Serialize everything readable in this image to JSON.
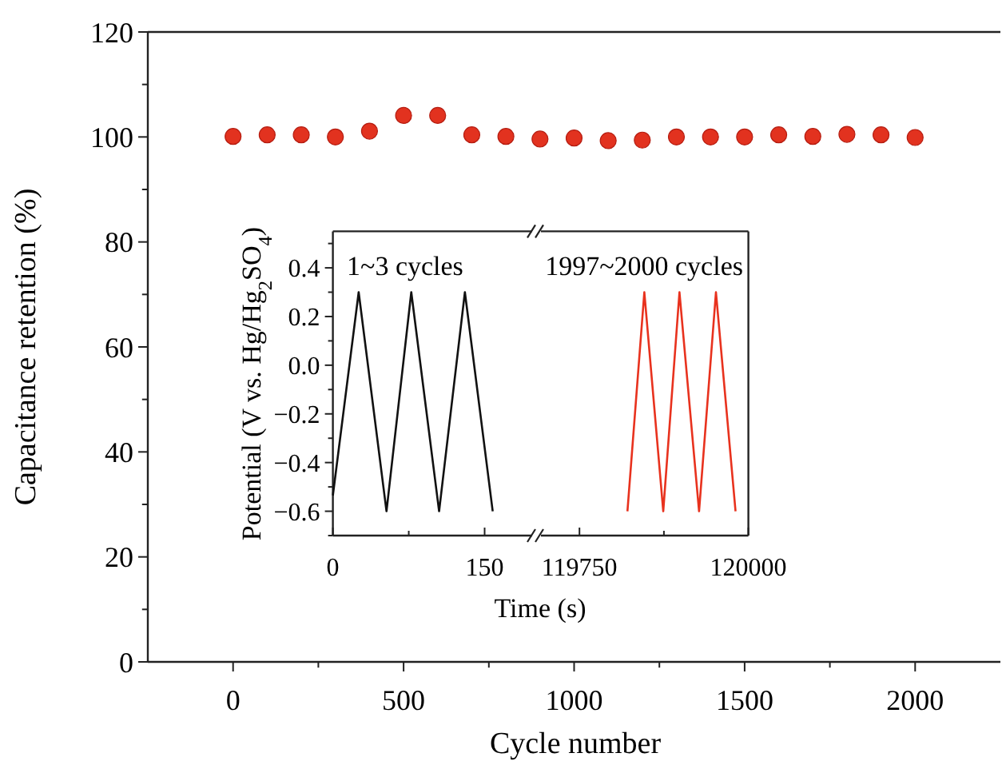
{
  "chart_data": [
    {
      "type": "scatter",
      "xlabel": "Cycle number",
      "ylabel": "Capacitance retention (%)",
      "xlim": [
        -250,
        2250
      ],
      "ylim": [
        0,
        120
      ],
      "xticks": [
        0,
        {
          "value": 250,
          "label": null
        },
        500,
        {
          "value": 750,
          "label": null
        },
        1000,
        {
          "value": 1250,
          "label": null
        },
        1500,
        {
          "value": 1750,
          "label": null
        },
        2000
      ],
      "yticks": [
        0,
        {
          "value": 10,
          "label": null
        },
        20,
        {
          "value": 30,
          "label": null
        },
        40,
        {
          "value": 50,
          "label": null
        },
        60,
        {
          "value": 70,
          "label": null
        },
        80,
        {
          "value": 90,
          "label": null
        },
        100,
        {
          "value": 110,
          "label": null
        },
        120
      ],
      "marker": "circle",
      "grid": false,
      "x": [
        0,
        100,
        200,
        300,
        400,
        500,
        600,
        700,
        800,
        900,
        1000,
        1100,
        1200,
        1300,
        1400,
        1500,
        1600,
        1700,
        1800,
        1900,
        2000
      ],
      "series": [
        {
          "color": "#e2321f",
          "values": [
            100.1,
            100.4,
            100.4,
            100,
            101.1,
            104.1,
            104.1,
            100.4,
            100.1,
            99.6,
            99.8,
            99.3,
            99.4,
            100,
            100,
            100,
            100.4,
            100.1,
            100.5,
            100.4,
            99.9
          ]
        }
      ]
    },
    {
      "type": "line",
      "xlabel": "Time (s)",
      "ylabel": "Potential (V vs. Hg/Hg$_{2}$SO$_{4}$)",
      "xlim": [
        0,
        197
      ],
      "ylim": [
        -0.7,
        0.55
      ],
      "xticks": [
        0,
        {
          "value": 75,
          "label": null
        },
        150
      ],
      "yticks": [
        {
          "value": -0.7,
          "label": null
        },
        {
          "value": -0.6,
          "label": "−0.6"
        },
        {
          "value": -0.5,
          "label": null
        },
        {
          "value": -0.4,
          "label": "−0.4"
        },
        {
          "value": -0.3,
          "label": null
        },
        {
          "value": -0.2,
          "label": "−0.2"
        },
        {
          "value": -0.1,
          "label": null
        },
        {
          "value": 0,
          "label": "0.0"
        },
        {
          "value": 0.1,
          "label": null
        },
        {
          "value": 0.2,
          "label": "0.2"
        },
        {
          "value": 0.3,
          "label": null
        },
        {
          "value": 0.4,
          "label": "0.4"
        },
        {
          "value": 0.5,
          "label": null
        }
      ],
      "annotations": [
        "1~3 cycles"
      ],
      "grid": false,
      "line_style": "solid",
      "series": [
        {
          "color": "#111111",
          "x": [
            0,
            25.5,
            53,
            77.5,
            105,
            130.5,
            158
          ],
          "values": [
            -0.535,
            0.3,
            -0.6,
            0.3,
            -0.6,
            0.3,
            -0.6
          ]
        }
      ]
    },
    {
      "type": "line",
      "xlim": [
        119693,
        120000
      ],
      "ylim": [
        -0.7,
        0.55
      ],
      "tick_labels": "x",
      "xticks": [
        119750,
        {
          "value": 119875,
          "label": null
        },
        120000
      ],
      "annotations": [
        "1997~2000 cycles"
      ],
      "grid": false,
      "line_style": "solid",
      "series": [
        {
          "color": "#e8321e",
          "x": [
            119821,
            119846,
            119874,
            119898,
            119927,
            119952,
            119981
          ],
          "values": [
            -0.6,
            0.3,
            -0.6,
            0.3,
            -0.6,
            0.3,
            -0.6
          ]
        }
      ]
    }
  ]
}
